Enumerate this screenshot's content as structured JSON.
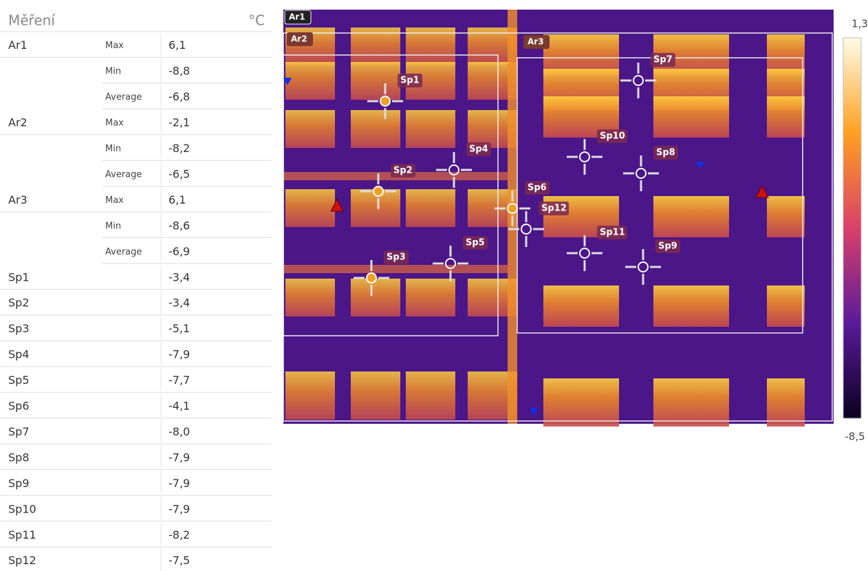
{
  "panel": {
    "title": "Měření",
    "unit": "°C",
    "rows": [
      {
        "label": "Ar1",
        "stat": "Max",
        "value": "6,1"
      },
      {
        "stat": "Min",
        "value": "-8,8"
      },
      {
        "stat": "Average",
        "value": "-6,8"
      },
      {
        "label": "Ar2",
        "stat": "Max",
        "value": "-2,1"
      },
      {
        "stat": "Min",
        "value": "-8,2"
      },
      {
        "stat": "Average",
        "value": "-6,5"
      },
      {
        "label": "Ar3",
        "stat": "Max",
        "value": "6,1"
      },
      {
        "stat": "Min",
        "value": "-8,6"
      },
      {
        "stat": "Average",
        "value": "-6,9"
      },
      {
        "label": "Sp1",
        "value": "-3,4"
      },
      {
        "label": "Sp2",
        "value": "-3,4"
      },
      {
        "label": "Sp3",
        "value": "-5,1"
      },
      {
        "label": "Sp4",
        "value": "-7,9"
      },
      {
        "label": "Sp5",
        "value": "-7,7"
      },
      {
        "label": "Sp6",
        "value": "-4,1"
      },
      {
        "label": "Sp7",
        "value": "-8,0"
      },
      {
        "label": "Sp8",
        "value": "-7,9"
      },
      {
        "label": "Sp9",
        "value": "-7,9"
      },
      {
        "label": "Sp10",
        "value": "-7,9"
      },
      {
        "label": "Sp11",
        "value": "-8,2"
      },
      {
        "label": "Sp12",
        "value": "-7,5"
      }
    ]
  },
  "image": {
    "areas": [
      "Ar1",
      "Ar2",
      "Ar3"
    ],
    "spots": [
      "Sp1",
      "Sp2",
      "Sp3",
      "Sp4",
      "Sp5",
      "Sp6",
      "Sp7",
      "Sp8",
      "Sp9",
      "Sp10",
      "Sp11",
      "Sp12"
    ],
    "scale": {
      "max": "1,3",
      "min": "-8,5"
    }
  }
}
